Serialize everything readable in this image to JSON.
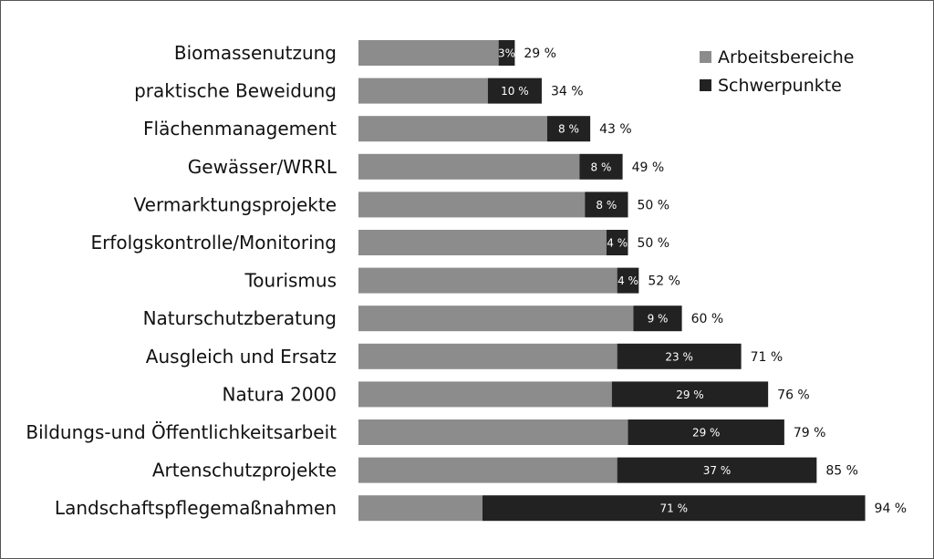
{
  "chart_data": {
    "type": "bar",
    "orientation": "horizontal",
    "stacked": true,
    "categories": [
      "Biomassenutzung",
      "praktische Beweidung",
      "Flächenmanagement",
      "Gewässer/WRRL",
      "Vermarktungsprojekte",
      "Erfolgskontrolle/Monitoring",
      "Tourismus",
      "Naturschutzberatung",
      "Ausgleich  und Ersatz",
      "Natura 2000",
      "Bildungs-und Öffentlichkeitsarbeit",
      "Artenschutzprojekte",
      "Landschaftspflegemaßnahmen"
    ],
    "series": [
      {
        "name": "Arbeitsbereiche",
        "color": "#8c8c8c",
        "values": [
          26,
          24,
          35,
          41,
          42,
          46,
          48,
          51,
          48,
          47,
          50,
          48,
          23
        ]
      },
      {
        "name": "Schwerpunkte",
        "color": "#222222",
        "values": [
          3,
          10,
          8,
          8,
          8,
          4,
          4,
          9,
          23,
          29,
          29,
          37,
          71
        ],
        "labels": [
          "3%",
          "10 %",
          "8 %",
          "8 %",
          "8 %",
          "4 %",
          "4 %",
          "9 %",
          "23 %",
          "29 %",
          "29 %",
          "37 %",
          "71 %"
        ]
      }
    ],
    "totals": [
      29,
      34,
      43,
      49,
      50,
      50,
      52,
      60,
      71,
      76,
      79,
      85,
      94
    ],
    "total_labels": [
      "29 %",
      "34 %",
      "43 %",
      "49 %",
      "50 %",
      "50 %",
      "52 %",
      "60 %",
      "71 %",
      "76 %",
      "79 %",
      "85 %",
      "94 %"
    ],
    "xlim": [
      0,
      94
    ],
    "grid": false,
    "legend_position": "top-right",
    "legend": [
      {
        "name": "Arbeitsbereiche",
        "color": "#8c8c8c"
      },
      {
        "name": "Schwerpunkte",
        "color": "#222222"
      }
    ]
  }
}
